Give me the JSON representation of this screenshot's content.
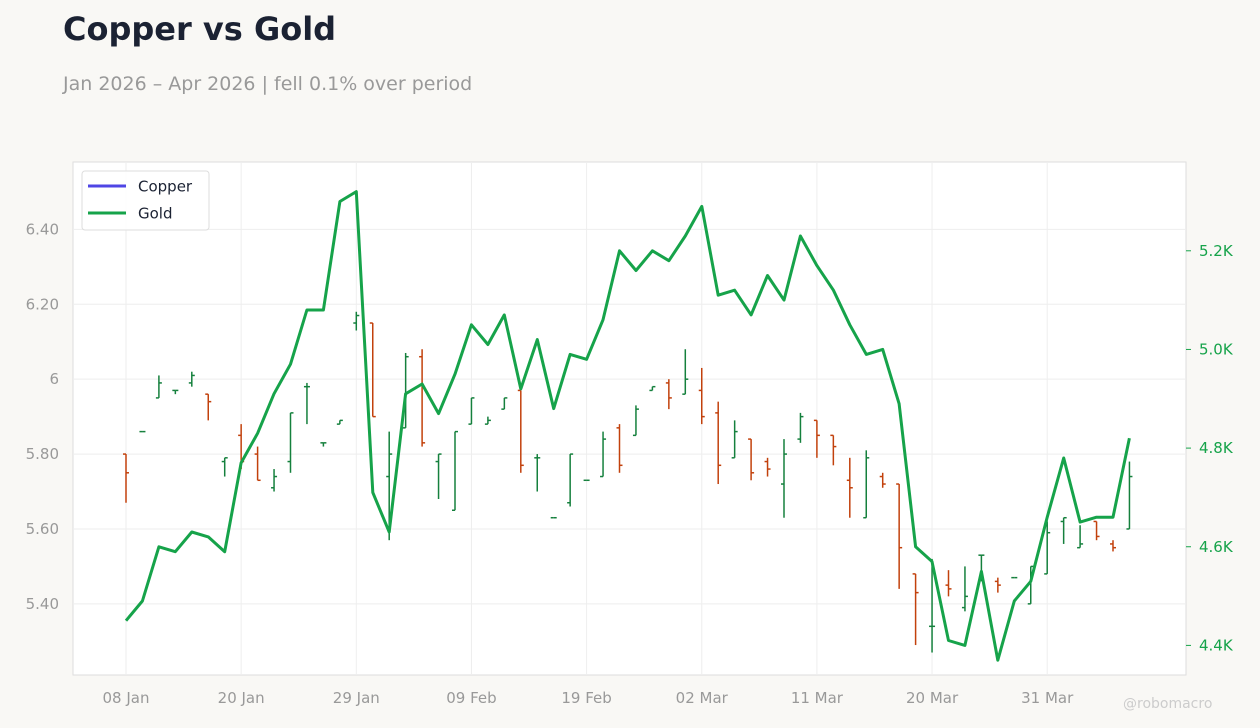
{
  "title": "Copper vs Gold",
  "subtitle": "Jan 2026 – Apr 2026 | fell 0.1% over period",
  "watermark": "@robomacro",
  "colors": {
    "copper_legend": "#4f46e5",
    "gold": "#16a34a",
    "ohlc_up": "#15803d",
    "ohlc_down": "#c2410c",
    "grid": "#eeeeee",
    "axis_text": "#999999",
    "frame": "#dddddd"
  },
  "legend": [
    "Copper",
    "Gold"
  ],
  "chart_data": {
    "type": "line",
    "x_ticks": [
      "08 Jan",
      "20 Jan",
      "29 Jan",
      "09 Feb",
      "19 Feb",
      "02 Mar",
      "11 Mar",
      "20 Mar",
      "31 Mar"
    ],
    "y_left": {
      "ticks": [
        "5.40",
        "5.60",
        "5.80",
        "6",
        "6.20",
        "6.40"
      ],
      "range": [
        5.21,
        6.58
      ]
    },
    "y_right": {
      "ticks": [
        "4.4K",
        "4.6K",
        "4.8K",
        "5.0K",
        "5.2K"
      ],
      "range": [
        4.34,
        5.38
      ]
    },
    "series": [
      {
        "name": "Copper",
        "kind": "ohlc",
        "axis": "left",
        "bars": [
          [
            5.8,
            5.8,
            5.67,
            5.75
          ],
          [
            5.86,
            5.86,
            5.86,
            5.86
          ],
          [
            5.95,
            6.01,
            5.95,
            5.99
          ],
          [
            5.97,
            5.97,
            5.96,
            5.97
          ],
          [
            5.99,
            6.02,
            5.98,
            6.01
          ],
          [
            5.96,
            5.96,
            5.89,
            5.94
          ],
          [
            5.78,
            5.79,
            5.74,
            5.79
          ],
          [
            5.85,
            5.88,
            5.76,
            5.78
          ],
          [
            5.8,
            5.82,
            5.73,
            5.73
          ],
          [
            5.71,
            5.76,
            5.7,
            5.74
          ],
          [
            5.78,
            5.91,
            5.75,
            5.91
          ],
          [
            5.98,
            5.99,
            5.88,
            5.98
          ],
          [
            5.83,
            5.83,
            5.82,
            5.83
          ],
          [
            5.88,
            5.89,
            5.88,
            5.89
          ],
          [
            6.15,
            6.18,
            6.13,
            6.17
          ],
          [
            6.15,
            6.15,
            5.9,
            5.9
          ],
          [
            5.74,
            5.86,
            5.57,
            5.8
          ],
          [
            5.87,
            6.07,
            5.87,
            6.06
          ],
          [
            6.06,
            6.08,
            5.82,
            5.83
          ],
          [
            5.78,
            5.8,
            5.68,
            5.8
          ],
          [
            5.65,
            5.86,
            5.65,
            5.86
          ],
          [
            5.88,
            5.95,
            5.88,
            5.95
          ],
          [
            5.88,
            5.9,
            5.88,
            5.89
          ],
          [
            5.92,
            5.95,
            5.92,
            5.95
          ],
          [
            5.97,
            5.97,
            5.75,
            5.77
          ],
          [
            5.79,
            5.8,
            5.7,
            5.79
          ],
          [
            5.63,
            5.63,
            5.63,
            5.63
          ],
          [
            5.67,
            5.8,
            5.66,
            5.8
          ],
          [
            5.73,
            5.73,
            5.73,
            5.73
          ],
          [
            5.74,
            5.86,
            5.74,
            5.84
          ],
          [
            5.87,
            5.88,
            5.75,
            5.77
          ],
          [
            5.85,
            5.93,
            5.85,
            5.92
          ],
          [
            5.97,
            5.98,
            5.97,
            5.98
          ],
          [
            5.99,
            6.0,
            5.92,
            5.95
          ],
          [
            5.96,
            6.08,
            5.96,
            6.0
          ],
          [
            5.97,
            6.03,
            5.88,
            5.9
          ],
          [
            5.91,
            5.94,
            5.72,
            5.77
          ],
          [
            5.79,
            5.89,
            5.79,
            5.86
          ],
          [
            5.84,
            5.84,
            5.73,
            5.75
          ],
          [
            5.78,
            5.79,
            5.74,
            5.76
          ],
          [
            5.72,
            5.84,
            5.63,
            5.8
          ],
          [
            5.84,
            5.91,
            5.83,
            5.9
          ],
          [
            5.89,
            5.89,
            5.79,
            5.85
          ],
          [
            5.85,
            5.85,
            5.77,
            5.82
          ],
          [
            5.73,
            5.79,
            5.63,
            5.71
          ],
          [
            5.63,
            5.81,
            5.63,
            5.79
          ],
          [
            5.74,
            5.75,
            5.71,
            5.72
          ],
          [
            5.72,
            5.72,
            5.44,
            5.55
          ],
          [
            5.48,
            5.48,
            5.29,
            5.43
          ],
          [
            5.34,
            5.52,
            5.27,
            5.34
          ],
          [
            5.45,
            5.49,
            5.42,
            5.44
          ],
          [
            5.39,
            5.5,
            5.38,
            5.42
          ],
          [
            5.53,
            5.53,
            5.46,
            5.53
          ],
          [
            5.46,
            5.47,
            5.43,
            5.45
          ],
          [
            5.47,
            5.47,
            5.47,
            5.47
          ],
          [
            5.4,
            5.5,
            5.4,
            5.5
          ],
          [
            5.48,
            5.62,
            5.48,
            5.59
          ],
          [
            5.62,
            5.63,
            5.56,
            5.63
          ],
          [
            5.55,
            5.61,
            5.55,
            5.56
          ],
          [
            5.62,
            5.62,
            5.57,
            5.58
          ],
          [
            5.56,
            5.57,
            5.54,
            5.55
          ],
          [
            5.6,
            5.78,
            5.6,
            5.74
          ]
        ]
      },
      {
        "name": "Gold",
        "kind": "line",
        "axis": "right",
        "values": [
          4.45,
          4.49,
          4.6,
          4.59,
          4.63,
          4.62,
          4.59,
          4.77,
          4.83,
          4.91,
          4.97,
          5.08,
          5.08,
          5.3,
          5.32,
          4.71,
          4.63,
          4.91,
          4.93,
          4.87,
          4.95,
          5.05,
          5.01,
          5.07,
          4.92,
          5.02,
          4.88,
          4.99,
          4.98,
          5.06,
          5.2,
          5.16,
          5.2,
          5.18,
          5.23,
          5.29,
          5.11,
          5.12,
          5.07,
          5.15,
          5.1,
          5.23,
          5.17,
          5.12,
          5.05,
          4.99,
          5.0,
          4.89,
          4.6,
          4.57,
          4.41,
          4.4,
          4.55,
          4.37,
          4.49,
          4.53,
          4.66,
          4.78,
          4.65,
          4.66,
          4.66,
          4.82
        ]
      }
    ]
  }
}
